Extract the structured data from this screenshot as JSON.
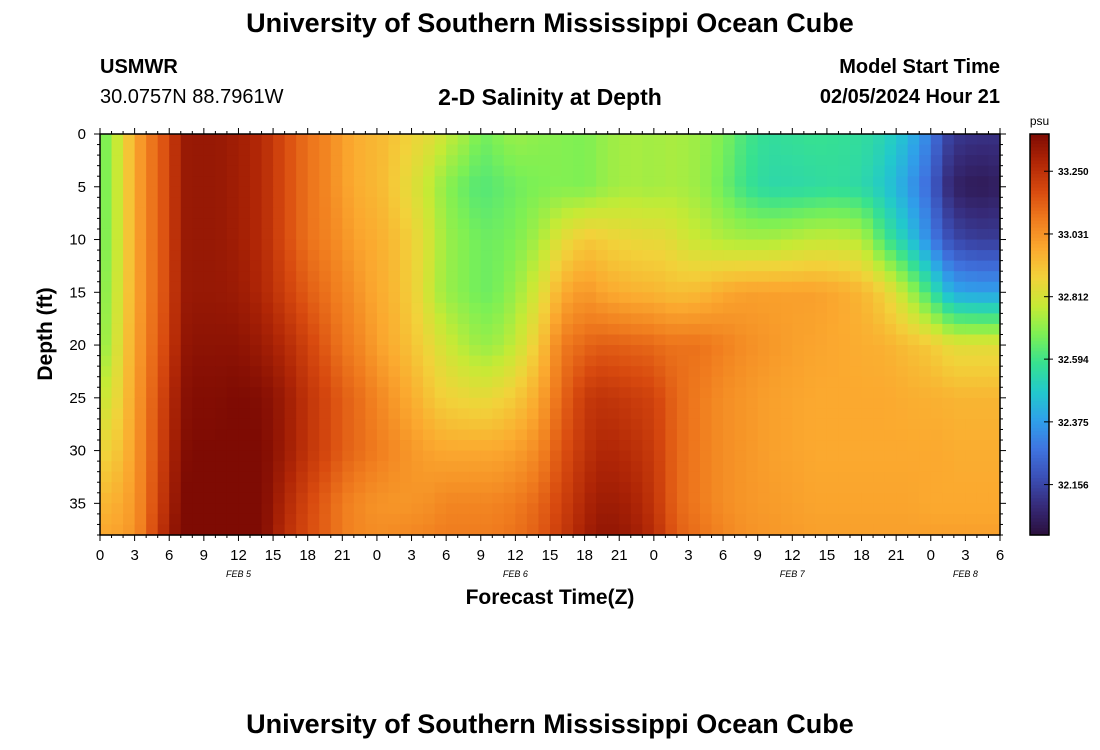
{
  "header": {
    "title": "University of Southern Mississippi Ocean Cube",
    "station": "USMWR",
    "coordinates": "30.0757N  88.7961W",
    "subtitle": "2-D Salinity at Depth",
    "start_label": "Model Start Time",
    "start_value": "02/05/2024 Hour 21"
  },
  "footer": {
    "title": "University of Southern Mississippi Ocean Cube"
  },
  "chart_data": {
    "type": "heatmap",
    "xlabel": "Forecast Time(Z)",
    "ylabel": "Depth (ft)",
    "x_ticks": [
      "0",
      "3",
      "6",
      "9",
      "12",
      "15",
      "18",
      "21",
      "0",
      "3",
      "6",
      "9",
      "12",
      "15",
      "18",
      "21",
      "0",
      "3",
      "6",
      "9",
      "12",
      "15",
      "18",
      "21",
      "0",
      "3",
      "6"
    ],
    "date_labels": [
      {
        "label": "FEB 5",
        "at_hour": 12
      },
      {
        "label": "FEB 6",
        "at_hour": 36
      },
      {
        "label": "FEB 7",
        "at_hour": 60
      },
      {
        "label": "FEB 8",
        "at_hour": 75
      }
    ],
    "x_range_hours": [
      0,
      78
    ],
    "y_ticks": [
      0,
      5,
      10,
      15,
      20,
      25,
      30,
      35
    ],
    "y_range_ft": [
      0,
      38
    ],
    "y_inverted": true,
    "colorbar": {
      "unit": "psu",
      "ticks": [
        "33.250",
        "33.031",
        "32.812",
        "32.594",
        "32.375",
        "32.156"
      ],
      "range": [
        31.98,
        33.38
      ],
      "colors": [
        "#2b0f3d",
        "#362a78",
        "#3b4fb6",
        "#3f74e0",
        "#2fa0ea",
        "#22c9cc",
        "#37e190",
        "#7df054",
        "#c6ea35",
        "#f2d23a",
        "#fba92f",
        "#f07c1e",
        "#d84a0f",
        "#b02606",
        "#7e0b03"
      ]
    },
    "columns_hours": [
      0,
      1,
      2,
      3,
      4,
      5,
      6,
      7,
      8,
      10,
      12,
      14,
      16,
      18,
      20,
      21,
      22,
      23,
      24,
      26,
      28,
      29,
      30,
      32,
      33,
      34,
      36,
      38,
      40,
      42,
      43,
      44,
      46,
      48,
      49,
      50,
      52,
      54,
      56,
      58,
      60,
      62,
      64,
      66,
      68,
      70,
      72,
      73,
      74,
      76,
      78
    ],
    "rows_depth_ft": [
      0,
      5,
      10,
      15,
      20,
      25,
      30,
      35,
      38
    ],
    "salinity_psu": [
      [
        32.65,
        32.72,
        32.85,
        32.98,
        33.05,
        33.14,
        33.18,
        33.32,
        33.33,
        33.33,
        33.31,
        33.27,
        33.18,
        33.1,
        33.05,
        33.0,
        32.98,
        32.95,
        32.95,
        32.9,
        32.85,
        32.83,
        32.78,
        32.72,
        32.66,
        32.68,
        32.72,
        32.7,
        32.69,
        32.68,
        32.7,
        32.72,
        32.74,
        32.73,
        32.74,
        32.74,
        32.72,
        32.68,
        32.6,
        32.56,
        32.57,
        32.58,
        32.57,
        32.56,
        32.52,
        32.44,
        32.3,
        32.18,
        32.12,
        32.1,
        32.1
      ],
      [
        32.65,
        32.72,
        32.85,
        32.98,
        33.05,
        33.14,
        33.18,
        33.32,
        33.33,
        33.33,
        33.31,
        33.27,
        33.18,
        33.1,
        33.05,
        33.0,
        32.98,
        32.95,
        32.95,
        32.88,
        32.8,
        32.75,
        32.7,
        32.64,
        32.62,
        32.63,
        32.66,
        32.68,
        32.69,
        32.68,
        32.7,
        32.72,
        32.74,
        32.73,
        32.74,
        32.74,
        32.72,
        32.66,
        32.58,
        32.54,
        32.54,
        32.55,
        32.56,
        32.54,
        32.48,
        32.38,
        32.24,
        32.12,
        32.05,
        32.02,
        32.04
      ],
      [
        32.66,
        32.72,
        32.85,
        32.98,
        33.05,
        33.14,
        33.18,
        33.32,
        33.33,
        33.33,
        33.31,
        33.27,
        33.18,
        33.1,
        33.06,
        33.03,
        33.0,
        32.98,
        32.97,
        32.92,
        32.84,
        32.78,
        32.72,
        32.68,
        32.66,
        32.66,
        32.68,
        32.74,
        32.84,
        32.9,
        32.9,
        32.88,
        32.86,
        32.85,
        32.85,
        32.82,
        32.78,
        32.75,
        32.74,
        32.74,
        32.76,
        32.78,
        32.78,
        32.76,
        32.6,
        32.48,
        32.32,
        32.22,
        32.16,
        32.13,
        32.13
      ],
      [
        32.68,
        32.74,
        32.86,
        32.98,
        33.05,
        33.14,
        33.18,
        33.32,
        33.33,
        33.33,
        33.32,
        33.28,
        33.21,
        33.14,
        33.09,
        33.06,
        33.04,
        33.0,
        32.98,
        32.93,
        32.84,
        32.76,
        32.72,
        32.68,
        32.66,
        32.66,
        32.72,
        32.82,
        32.97,
        33.02,
        33.0,
        32.98,
        32.96,
        32.95,
        32.94,
        32.93,
        32.94,
        32.98,
        33.0,
        33.0,
        33.0,
        33.0,
        32.98,
        32.95,
        32.88,
        32.75,
        32.58,
        32.48,
        32.4,
        32.38,
        32.38
      ],
      [
        32.7,
        32.76,
        32.88,
        32.99,
        33.06,
        33.15,
        33.2,
        33.33,
        33.35,
        33.35,
        33.35,
        33.32,
        33.27,
        33.2,
        33.13,
        33.09,
        33.07,
        33.04,
        33.0,
        32.95,
        32.88,
        32.84,
        32.8,
        32.74,
        32.72,
        32.72,
        32.78,
        32.9,
        33.08,
        33.12,
        33.14,
        33.14,
        33.13,
        33.12,
        33.1,
        33.1,
        33.1,
        33.07,
        33.04,
        33.02,
        33.0,
        32.99,
        32.98,
        32.97,
        32.96,
        32.93,
        32.9,
        32.87,
        32.84,
        32.84,
        32.84
      ],
      [
        32.78,
        32.82,
        32.9,
        33.0,
        33.08,
        33.17,
        33.24,
        33.35,
        33.37,
        33.37,
        33.38,
        33.37,
        33.32,
        33.24,
        33.18,
        33.14,
        33.12,
        33.09,
        33.06,
        33.0,
        32.94,
        32.9,
        32.88,
        32.86,
        32.85,
        32.86,
        32.9,
        32.98,
        33.12,
        33.22,
        33.24,
        33.24,
        33.22,
        33.2,
        33.16,
        33.12,
        33.08,
        33.04,
        33.02,
        33.0,
        32.99,
        32.98,
        32.98,
        32.98,
        32.98,
        32.97,
        32.96,
        32.96,
        32.95,
        32.95,
        32.95
      ],
      [
        32.86,
        32.89,
        32.93,
        33.01,
        33.09,
        33.18,
        33.26,
        33.36,
        33.38,
        33.38,
        33.39,
        33.38,
        33.32,
        33.24,
        33.18,
        33.14,
        33.12,
        33.1,
        33.08,
        33.04,
        33.0,
        32.99,
        32.98,
        32.98,
        32.98,
        32.98,
        33.0,
        33.05,
        33.16,
        33.24,
        33.27,
        33.28,
        33.26,
        33.22,
        33.17,
        33.12,
        33.08,
        33.04,
        33.02,
        33.0,
        32.99,
        32.98,
        32.98,
        32.98,
        32.98,
        32.98,
        32.98,
        32.98,
        32.97,
        32.97,
        32.97
      ],
      [
        32.94,
        32.96,
        32.98,
        33.02,
        33.1,
        33.2,
        33.28,
        33.38,
        33.39,
        33.39,
        33.4,
        33.38,
        33.28,
        33.19,
        33.12,
        33.08,
        33.06,
        33.04,
        33.03,
        33.02,
        33.03,
        33.04,
        33.06,
        33.06,
        33.06,
        33.06,
        33.08,
        33.12,
        33.2,
        33.28,
        33.31,
        33.32,
        33.3,
        33.24,
        33.18,
        33.12,
        33.08,
        33.04,
        33.02,
        33.01,
        33.0,
        32.99,
        32.99,
        32.99,
        32.99,
        32.99,
        32.98,
        32.98,
        32.98,
        32.98,
        32.98
      ],
      [
        32.98,
        32.99,
        33.0,
        33.03,
        33.11,
        33.22,
        33.3,
        33.39,
        33.4,
        33.4,
        33.4,
        33.38,
        33.26,
        33.18,
        33.12,
        33.08,
        33.06,
        33.05,
        33.04,
        33.05,
        33.06,
        33.07,
        33.08,
        33.08,
        33.08,
        33.08,
        33.1,
        33.14,
        33.22,
        33.3,
        33.33,
        33.34,
        33.32,
        33.26,
        33.2,
        33.14,
        33.1,
        33.06,
        33.03,
        33.02,
        33.01,
        33.0,
        33.0,
        33.0,
        33.0,
        33.0,
        33.0,
        33.0,
        33.0,
        33.0,
        33.0
      ]
    ]
  }
}
